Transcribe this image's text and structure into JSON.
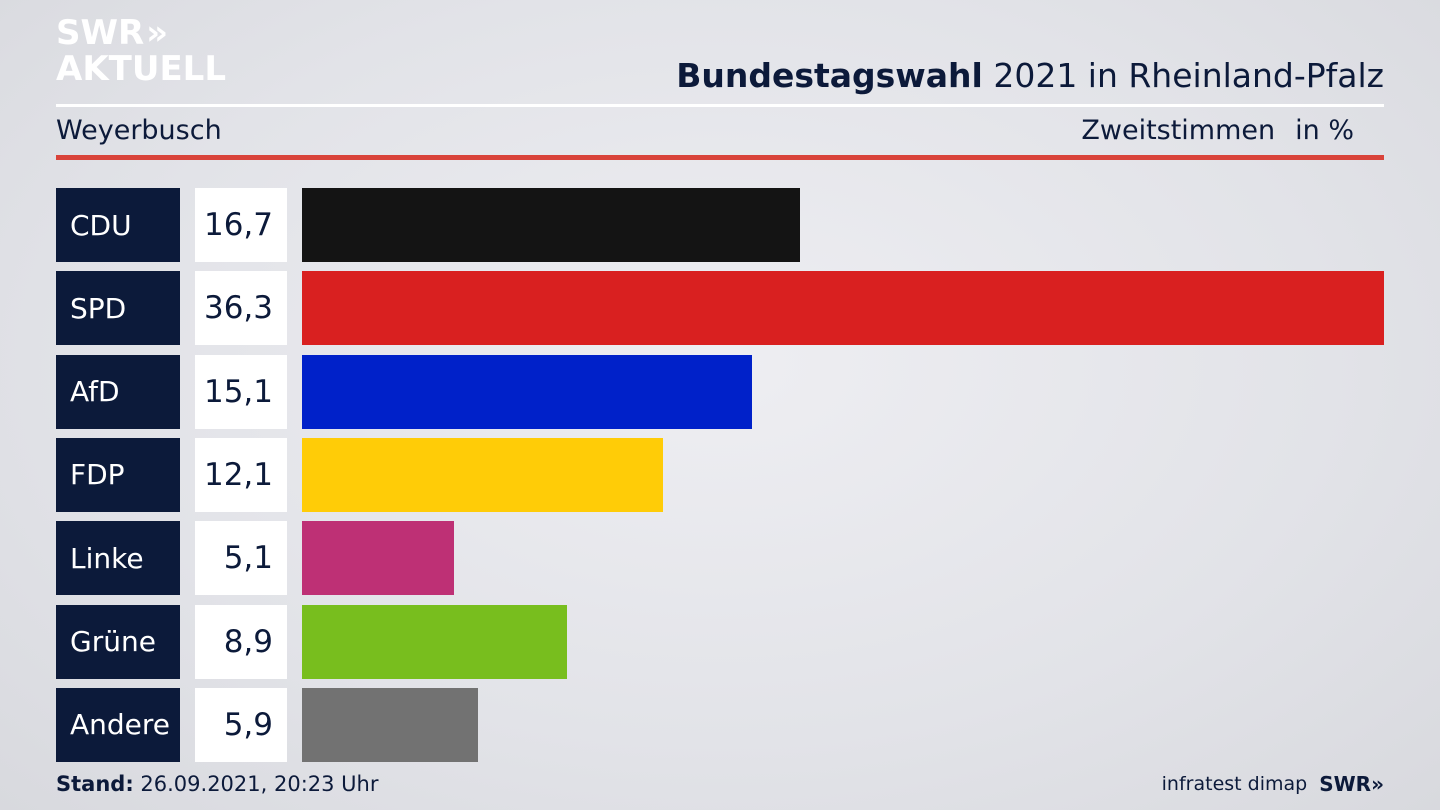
{
  "logo": {
    "line1": "SWR",
    "chevrons": "»",
    "line2": "AKTUELL"
  },
  "header": {
    "title_bold": "Bundestagswahl",
    "title_rest": " 2021 in Rheinland-Pfalz",
    "location": "Weyerbusch",
    "measure": "Zweitstimmen",
    "unit": "in %"
  },
  "chart_data": {
    "type": "bar",
    "orientation": "horizontal",
    "categories": [
      "CDU",
      "SPD",
      "AfD",
      "FDP",
      "Linke",
      "Grüne",
      "Andere"
    ],
    "values": [
      16.7,
      36.3,
      15.1,
      12.1,
      5.1,
      8.9,
      5.9
    ],
    "value_labels": [
      "16,7",
      "36,3",
      "15,1",
      "12,1",
      "5,1",
      "8,9",
      "5,9"
    ],
    "colors": [
      "#141414",
      "#d92020",
      "#0021c9",
      "#ffcc07",
      "#be3075",
      "#78be1e",
      "#727272"
    ],
    "xlim": [
      0,
      36.3
    ]
  },
  "footer": {
    "stand_label": "Stand:",
    "stand_value": " 26.09.2021, 20:23 Uhr",
    "source": "infratest dimap",
    "brand": "SWR»"
  }
}
